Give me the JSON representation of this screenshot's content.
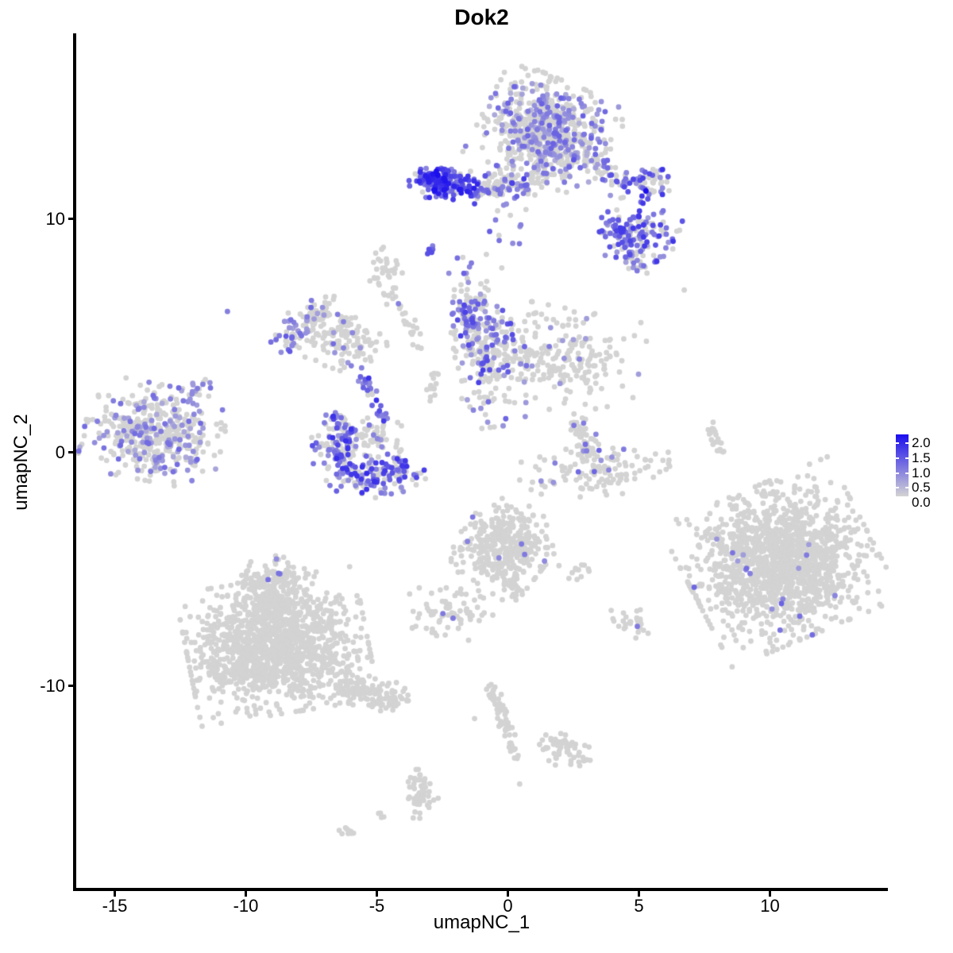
{
  "chart_data": {
    "type": "scatter",
    "title": "Dok2",
    "xlabel": "umapNC_1",
    "ylabel": "umapNC_2",
    "xlim": [
      -16.5,
      14.5
    ],
    "ylim": [
      -18.65,
      17.85
    ],
    "x_ticks": [
      -15,
      -10,
      -5,
      0,
      5,
      10
    ],
    "y_ticks": [
      -10,
      0,
      10
    ],
    "grid": false,
    "legend": {
      "position": "right",
      "ticks": [
        {
          "label": "2.0",
          "value": 2.0
        },
        {
          "label": "1.5",
          "value": 1.5
        },
        {
          "label": "1.0",
          "value": 1.0
        },
        {
          "label": "0.5",
          "value": 0.5
        },
        {
          "label": "0.0",
          "value": 0.0
        }
      ]
    },
    "colors": {
      "background": "#FFFFFF",
      "axis": "#000000",
      "expression_low": "#D3D3D3",
      "expression_high": "#1A0DEE"
    },
    "value_range": [
      0.0,
      2.0
    ],
    "point_radius_px": 3.4,
    "seed": 1234,
    "clusters": [
      {
        "name": "top-main-blob",
        "kind": "gauss",
        "cx": 1.5,
        "cy": 13.8,
        "rx": 1.1,
        "ry": 0.95,
        "rot": -25,
        "n": 700,
        "frac": 0.36,
        "vr": [
          0.35,
          1.15
        ]
      },
      {
        "name": "top-left-streak",
        "kind": "gauss",
        "cx": -2.35,
        "cy": 11.5,
        "rx": 0.62,
        "ry": 0.3,
        "rot": -8,
        "n": 130,
        "frac": 0.8,
        "vr": [
          0.7,
          1.9
        ]
      },
      {
        "name": "top-left-streak-core",
        "kind": "gauss",
        "cx": -2.75,
        "cy": 11.7,
        "rx": 0.28,
        "ry": 0.22,
        "rot": 0,
        "n": 55,
        "frac": 0.92,
        "vr": [
          0.9,
          2.0
        ]
      },
      {
        "name": "top-chain",
        "kind": "line",
        "x1": -1.5,
        "y1": 11.2,
        "x2": 1.0,
        "y2": 11.35,
        "w": 0.18,
        "n": 60,
        "frac": 0.5,
        "vr": [
          0.6,
          1.5
        ]
      },
      {
        "name": "top-chain-grey",
        "kind": "line",
        "x1": -1.2,
        "y1": 11.65,
        "x2": 1.3,
        "y2": 11.6,
        "w": 0.25,
        "n": 60,
        "frac": 0.2,
        "vr": [
          0.5,
          1.2
        ]
      },
      {
        "name": "top-arm",
        "kind": "line",
        "x1": 2.3,
        "y1": 12.9,
        "x2": 4.5,
        "y2": 11.4,
        "w": 0.28,
        "n": 55,
        "frac": 0.45,
        "vr": [
          0.5,
          1.4
        ]
      },
      {
        "name": "top-right-group",
        "kind": "gauss",
        "cx": 5.3,
        "cy": 11.6,
        "rx": 0.42,
        "ry": 0.38,
        "rot": 0,
        "n": 50,
        "frac": 0.72,
        "vr": [
          0.6,
          1.6
        ]
      },
      {
        "name": "top-right-knob",
        "kind": "gauss",
        "cx": 4.78,
        "cy": 9.3,
        "rx": 0.72,
        "ry": 0.62,
        "rot": -15,
        "n": 160,
        "frac": 0.62,
        "vr": [
          0.5,
          1.6
        ]
      },
      {
        "name": "knob-trail",
        "kind": "line",
        "x1": 4.4,
        "y1": 8.3,
        "x2": 5.2,
        "y2": 8.0,
        "w": 0.2,
        "n": 10,
        "frac": 0.4,
        "vr": [
          0.5,
          1.2
        ]
      },
      {
        "name": "below-top-sparse",
        "kind": "gauss",
        "cx": 0.0,
        "cy": 9.9,
        "rx": 0.35,
        "ry": 0.8,
        "rot": 0,
        "n": 16,
        "frac": 0.45,
        "vr": [
          0.6,
          1.2
        ]
      },
      {
        "name": "mid-left-column",
        "kind": "gauss",
        "cx": -0.95,
        "cy": 4.75,
        "rx": 0.5,
        "ry": 1.6,
        "rot": 8,
        "n": 230,
        "frac": 0.42,
        "vr": [
          0.5,
          1.5
        ]
      },
      {
        "name": "mid-left-tip",
        "kind": "line",
        "x1": -1.75,
        "y1": 6.3,
        "x2": -1.45,
        "y2": 5.4,
        "w": 0.2,
        "n": 25,
        "frac": 0.6,
        "vr": [
          0.6,
          1.4
        ]
      },
      {
        "name": "mid-right-mass",
        "kind": "gauss",
        "cx": 1.5,
        "cy": 4.1,
        "rx": 1.55,
        "ry": 0.95,
        "rot": -12,
        "n": 270,
        "frac": 0.05,
        "vr": [
          0.5,
          1.2
        ]
      },
      {
        "name": "wing-upper",
        "kind": "line",
        "x1": -8.7,
        "y1": 4.5,
        "x2": -7.3,
        "y2": 6.2,
        "w": 0.3,
        "n": 65,
        "frac": 0.5,
        "vr": [
          0.5,
          1.3
        ]
      },
      {
        "name": "wing-lower",
        "kind": "line",
        "x1": -7.3,
        "y1": 6.2,
        "x2": -5.1,
        "y2": 4.3,
        "w": 0.35,
        "n": 85,
        "frac": 0.18,
        "vr": [
          0.5,
          1.1
        ]
      },
      {
        "name": "wing-fill",
        "kind": "gauss",
        "cx": -6.6,
        "cy": 4.8,
        "rx": 0.8,
        "ry": 0.5,
        "rot": -20,
        "n": 70,
        "frac": 0.1,
        "vr": [
          0.5,
          1.0
        ]
      },
      {
        "name": "descending-chain",
        "kind": "line",
        "x1": -5.6,
        "y1": 3.6,
        "x2": -4.6,
        "y2": 1.35,
        "w": 0.16,
        "n": 28,
        "frac": 0.85,
        "vr": [
          0.7,
          1.7
        ]
      },
      {
        "name": "crescent",
        "kind": "arc",
        "cx": -5.1,
        "cy": 0.35,
        "r": 1.5,
        "a0": 135,
        "a1": 330,
        "w": 0.42,
        "n": 270,
        "frac": 0.55,
        "vr": [
          0.6,
          1.7
        ]
      },
      {
        "name": "crescent-inner",
        "kind": "gauss",
        "cx": -5.0,
        "cy": 0.6,
        "rx": 0.55,
        "ry": 0.4,
        "rot": 0,
        "n": 55,
        "frac": 0.12,
        "vr": [
          0.5,
          1.2
        ]
      },
      {
        "name": "far-left-cluster",
        "kind": "gauss",
        "cx": -13.5,
        "cy": 0.85,
        "rx": 1.15,
        "ry": 0.9,
        "rot": -12,
        "n": 430,
        "frac": 0.33,
        "vr": [
          0.4,
          1.1
        ]
      },
      {
        "name": "far-left-tail",
        "kind": "line",
        "x1": -12.1,
        "y1": 2.3,
        "x2": -11.5,
        "y2": 3.05,
        "w": 0.18,
        "n": 14,
        "frac": 0.5,
        "vr": [
          0.5,
          1.0
        ]
      },
      {
        "name": "upper-grey-chain-head",
        "kind": "gauss",
        "cx": -4.7,
        "cy": 7.75,
        "rx": 0.3,
        "ry": 0.45,
        "rot": 0,
        "n": 30,
        "frac": 0.03,
        "vr": [
          0.5,
          0.9
        ]
      },
      {
        "name": "upper-grey-chain",
        "kind": "line",
        "x1": -4.55,
        "y1": 7.0,
        "x2": -3.35,
        "y2": 4.35,
        "w": 0.16,
        "n": 30,
        "frac": 0.04,
        "vr": [
          0.5,
          0.9
        ]
      },
      {
        "name": "small-streak-left",
        "kind": "line",
        "x1": -2.85,
        "y1": 3.45,
        "x2": -2.9,
        "y2": 2.2,
        "w": 0.12,
        "n": 16,
        "frac": 0,
        "vr": [
          0,
          0
        ]
      },
      {
        "name": "right-streak",
        "kind": "line",
        "x1": 7.82,
        "y1": 1.3,
        "x2": 8.08,
        "y2": -0.1,
        "w": 0.12,
        "n": 20,
        "frac": 0,
        "vr": [
          0,
          0
        ]
      },
      {
        "name": "mid-c-arm",
        "kind": "line",
        "x1": 2.67,
        "y1": 1.3,
        "x2": 3.12,
        "y2": -0.1,
        "w": 0.22,
        "n": 45,
        "frac": 0.1,
        "vr": [
          0.6,
          1.1
        ]
      },
      {
        "name": "mid-c-bowl",
        "kind": "gauss",
        "cx": 3.3,
        "cy": -0.75,
        "rx": 1.25,
        "ry": 0.48,
        "rot": 5,
        "n": 120,
        "frac": 0.05,
        "vr": [
          0.6,
          1.2
        ]
      },
      {
        "name": "right-big-cluster",
        "kind": "gauss",
        "cx": 10.4,
        "cy": -4.7,
        "rx": 1.55,
        "ry": 1.45,
        "rot": 25,
        "n": 1450,
        "frac": 0.014,
        "vr": [
          0.5,
          1.2
        ]
      },
      {
        "name": "center-bottom-cluster",
        "kind": "gauss",
        "cx": -0.1,
        "cy": -4.0,
        "rx": 0.75,
        "ry": 0.85,
        "rot": -35,
        "n": 360,
        "frac": 0.006,
        "vr": [
          0.6,
          1.0
        ]
      },
      {
        "name": "center-bottom-tail",
        "kind": "line",
        "x1": 0.1,
        "y1": -5.6,
        "x2": 0.3,
        "y2": -6.3,
        "w": 0.15,
        "n": 12,
        "frac": 0,
        "vr": [
          0,
          0
        ]
      },
      {
        "name": "small-blob-left-center",
        "kind": "gauss",
        "cx": -2.3,
        "cy": -6.95,
        "rx": 0.75,
        "ry": 0.5,
        "rot": 0,
        "n": 70,
        "frac": 0,
        "vr": [
          0,
          0
        ]
      },
      {
        "name": "tiny-blob-center",
        "kind": "gauss",
        "cx": 2.64,
        "cy": -5.0,
        "rx": 0.3,
        "ry": 0.28,
        "rot": 0,
        "n": 12,
        "frac": 0,
        "vr": [
          0,
          0
        ]
      },
      {
        "name": "small-blob-right",
        "kind": "gauss",
        "cx": 4.72,
        "cy": -7.35,
        "rx": 0.42,
        "ry": 0.3,
        "rot": -20,
        "n": 26,
        "frac": 0,
        "vr": [
          0,
          0
        ]
      },
      {
        "name": "bottom-left-main",
        "kind": "gauss",
        "cx": -8.8,
        "cy": -8.3,
        "rx": 1.5,
        "ry": 1.25,
        "rot": 10,
        "n": 1250,
        "frac": 0.002,
        "vr": [
          0.5,
          0.9
        ]
      },
      {
        "name": "bottom-left-knob",
        "kind": "gauss",
        "cx": -9.1,
        "cy": -5.5,
        "rx": 0.62,
        "ry": 0.5,
        "rot": 0,
        "n": 130,
        "frac": 0.012,
        "vr": [
          0.6,
          1.0
        ]
      },
      {
        "name": "bottom-left-neck",
        "kind": "line",
        "x1": -9.1,
        "y1": -6.1,
        "x2": -8.9,
        "y2": -7.0,
        "w": 0.35,
        "n": 80,
        "frac": 0,
        "vr": [
          0,
          0
        ]
      },
      {
        "name": "bottom-left-tail",
        "kind": "line",
        "x1": -6.5,
        "y1": -9.8,
        "x2": -4.1,
        "y2": -10.7,
        "w": 0.32,
        "n": 130,
        "frac": 0,
        "vr": [
          0,
          0
        ]
      },
      {
        "name": "bottom-left-spur",
        "kind": "gauss",
        "cx": -10.6,
        "cy": -8.9,
        "rx": 0.5,
        "ry": 0.7,
        "rot": 0,
        "n": 70,
        "frac": 0,
        "vr": [
          0,
          0
        ]
      },
      {
        "name": "bottom-streak",
        "kind": "line",
        "x1": -0.62,
        "y1": -9.95,
        "x2": 0.1,
        "y2": -12.4,
        "w": 0.14,
        "n": 55,
        "frac": 0,
        "vr": [
          0,
          0
        ]
      },
      {
        "name": "bottom-streak2",
        "kind": "line",
        "x1": 0.12,
        "y1": -12.5,
        "x2": 0.35,
        "y2": -13.1,
        "w": 0.12,
        "n": 10,
        "frac": 0,
        "vr": [
          0,
          0
        ]
      },
      {
        "name": "arrow-blob",
        "kind": "gauss",
        "cx": 2.3,
        "cy": -12.7,
        "rx": 0.55,
        "ry": 0.38,
        "rot": -15,
        "n": 50,
        "frac": 0,
        "vr": [
          0,
          0
        ]
      },
      {
        "name": "arrow-tip",
        "kind": "line",
        "x1": 1.75,
        "y1": -12.35,
        "x2": 2.2,
        "y2": -12.6,
        "w": 0.12,
        "n": 10,
        "frac": 0,
        "vr": [
          0,
          0
        ]
      },
      {
        "name": "seahorse",
        "kind": "line",
        "x1": -3.55,
        "y1": -13.55,
        "x2": -3.28,
        "y2": -15.1,
        "w": 0.2,
        "n": 40,
        "frac": 0,
        "vr": [
          0,
          0
        ]
      },
      {
        "name": "seahorse-body",
        "kind": "gauss",
        "cx": -3.35,
        "cy": -14.9,
        "rx": 0.3,
        "ry": 0.35,
        "rot": 0,
        "n": 20,
        "frac": 0,
        "vr": [
          0,
          0
        ]
      },
      {
        "name": "tiny-streak-bottom",
        "kind": "line",
        "x1": -6.3,
        "y1": -16.1,
        "x2": -5.85,
        "y2": -16.45,
        "w": 0.12,
        "n": 10,
        "frac": 0,
        "vr": [
          0,
          0
        ]
      },
      {
        "name": "tiny-pair",
        "kind": "gauss",
        "cx": -4.85,
        "cy": -15.6,
        "rx": 0.12,
        "ry": 0.1,
        "rot": 0,
        "n": 4,
        "frac": 0,
        "vr": [
          0,
          0
        ]
      },
      {
        "name": "lone-purple-streak",
        "kind": "line",
        "x1": -3.08,
        "y1": 8.55,
        "x2": -2.82,
        "y2": 8.85,
        "w": 0.1,
        "n": 6,
        "frac": 1,
        "vr": [
          0.8,
          1.4
        ]
      }
    ],
    "singles": [
      {
        "x": -2.67,
        "y": 11.88,
        "v": 2.0
      },
      {
        "x": 5.27,
        "y": 11.2,
        "v": 2.0
      },
      {
        "x": -10.7,
        "y": 6.04,
        "v": 0.85
      },
      {
        "x": 6.73,
        "y": 6.96,
        "v": 0
      },
      {
        "x": 1.58,
        "y": 4.54,
        "v": 0.9
      },
      {
        "x": 2.73,
        "y": 4.0,
        "v": 0.8
      },
      {
        "x": 2.52,
        "y": 1.16,
        "v": 0.9
      },
      {
        "x": 3.36,
        "y": 0.78,
        "v": 0.8
      },
      {
        "x": 4.42,
        "y": 0.14,
        "v": 0.9
      },
      {
        "x": 3.3,
        "y": -0.82,
        "v": 1.1
      },
      {
        "x": 3.85,
        "y": -0.75,
        "v": 0.8
      },
      {
        "x": 0.52,
        "y": -3.92,
        "v": 0.9
      },
      {
        "x": 0.64,
        "y": -4.37,
        "v": 0.9
      },
      {
        "x": -2.48,
        "y": -6.9,
        "v": 0.9
      },
      {
        "x": -2.09,
        "y": -7.1,
        "v": 0.9
      },
      {
        "x": 4.94,
        "y": -7.45,
        "v": 0.9
      },
      {
        "x": -9.15,
        "y": -5.45,
        "v": 1.0
      },
      {
        "x": -8.7,
        "y": -5.2,
        "v": 0.95
      },
      {
        "x": -1.27,
        "y": -11.4,
        "v": 0
      },
      {
        "x": 0.45,
        "y": -14.2,
        "v": 0
      },
      {
        "x": 1.45,
        "y": -12.1,
        "v": 0
      }
    ]
  }
}
